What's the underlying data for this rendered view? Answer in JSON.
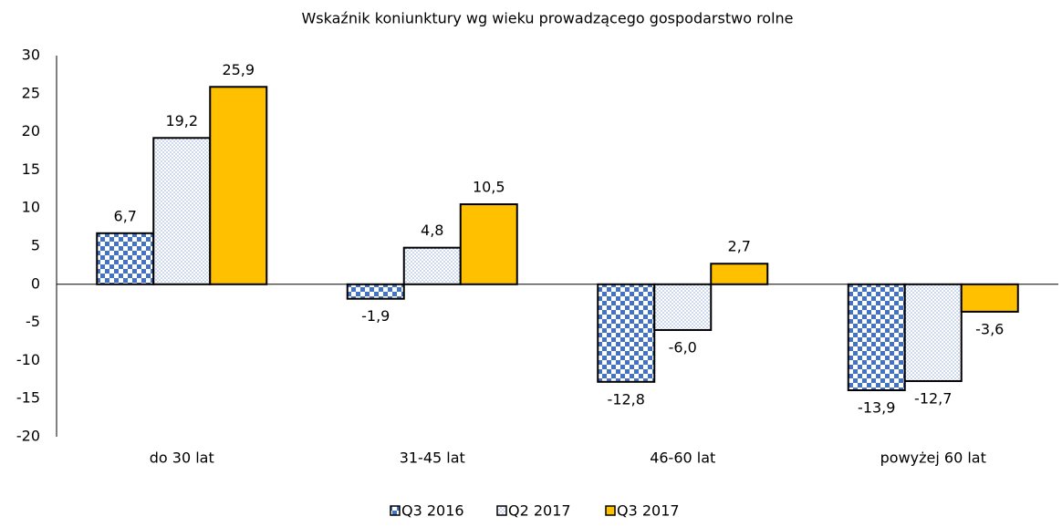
{
  "chart_data": {
    "type": "bar",
    "title": "Wskaźnik koniunktury wg wieku prowadzącego gospodarstwo rolne",
    "categories": [
      "do 30 lat",
      "31-45 lat",
      "46-60 lat",
      "powyżej 60 lat"
    ],
    "series": [
      {
        "name": "Q3 2016",
        "color": "#4472c4",
        "pattern": "checker",
        "values": [
          6.7,
          -1.9,
          -12.8,
          -13.9
        ],
        "value_labels": [
          "6,7",
          "-1,9",
          "-12,8",
          "-13,9"
        ]
      },
      {
        "name": "Q2 2017",
        "color": "#8faadc",
        "pattern": "dots",
        "values": [
          19.2,
          4.8,
          -6.0,
          -12.7
        ],
        "value_labels": [
          "19,2",
          "4,8",
          "-6,0",
          "-12,7"
        ]
      },
      {
        "name": "Q3 2017",
        "color": "#ffc000",
        "pattern": "solid",
        "values": [
          25.9,
          10.5,
          2.7,
          -3.6
        ],
        "value_labels": [
          "25,9",
          "10,5",
          "2,7",
          "-3,6"
        ]
      }
    ],
    "ylim": [
      -20,
      30
    ],
    "yticks": [
      -20,
      -15,
      -10,
      -5,
      0,
      5,
      10,
      15,
      20,
      25,
      30
    ],
    "grid": false,
    "legend": "bottom"
  }
}
